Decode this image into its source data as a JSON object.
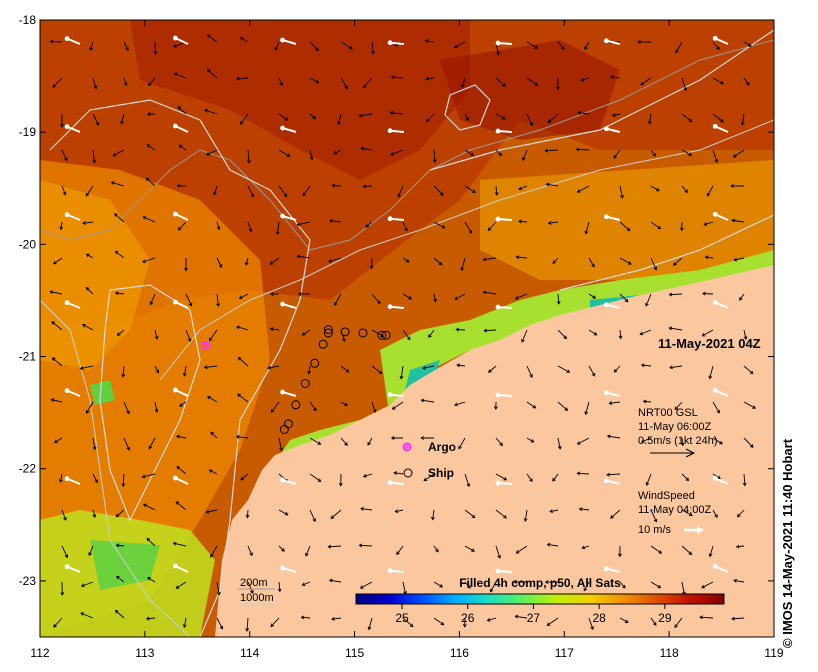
{
  "map": {
    "lon_ticks": [
      "112",
      "113",
      "114",
      "115",
      "116",
      "117",
      "118",
      "119"
    ],
    "lat_ticks": [
      "-18",
      "-19",
      "-20",
      "-21",
      "-22",
      "-23"
    ],
    "lon_range": [
      112,
      119
    ],
    "lat_range": [
      -23.5,
      -18
    ],
    "timestamp_label": "11-May-2021 04Z",
    "credit": "IMOS 14-May-2021 11:40 Hobart",
    "copyright_symbol": "©"
  },
  "currents_legend": {
    "line1": "NRT00 GSL",
    "line2": "11-May 06:00Z",
    "line3": "0.5m/s (1kt 24h)"
  },
  "wind_legend": {
    "line1": "WindSpeed",
    "line2": "11-May 04:00Z",
    "line3": "10 m/s"
  },
  "symbols_legend": {
    "argo": "Argo",
    "ship": "Ship",
    "argo_color": "#ff33ff",
    "ship_color": "#000000"
  },
  "bathymetry_legend": {
    "shallow": "200m",
    "deep": "1000m"
  },
  "colorbar": {
    "title": "Filled 4h comp, p50, All Sats",
    "ticks": [
      "25",
      "26",
      "27",
      "28",
      "29"
    ],
    "tick_values": [
      25,
      26,
      27,
      28,
      29
    ],
    "range": [
      24.3,
      29.9
    ],
    "colors": [
      "#00007f",
      "#0000d0",
      "#0050ff",
      "#00b0ff",
      "#20e0c0",
      "#60f060",
      "#c0f000",
      "#f0d000",
      "#f09000",
      "#e05000",
      "#c01000",
      "#800000"
    ]
  },
  "observations": {
    "argo": [
      {
        "lon": 113.58,
        "lat": -20.9
      }
    ],
    "ships": [
      {
        "lon": 114.33,
        "lat": -21.65
      },
      {
        "lon": 114.37,
        "lat": -21.6
      },
      {
        "lon": 114.44,
        "lat": -21.43
      },
      {
        "lon": 114.53,
        "lat": -21.24
      },
      {
        "lon": 114.62,
        "lat": -21.06
      },
      {
        "lon": 114.7,
        "lat": -20.89
      },
      {
        "lon": 114.75,
        "lat": -20.76
      },
      {
        "lon": 114.75,
        "lat": -20.79
      },
      {
        "lon": 114.91,
        "lat": -20.78
      },
      {
        "lon": 115.08,
        "lat": -20.79
      },
      {
        "lon": 115.26,
        "lat": -20.81
      },
      {
        "lon": 115.3,
        "lat": -20.81
      }
    ]
  },
  "colors": {
    "land": "#fbc79e",
    "graticule": "#000000",
    "contour": "#d9d9d9",
    "bathy_200": "#9a9a9a",
    "bathy_1000": "#cfcfcf"
  }
}
